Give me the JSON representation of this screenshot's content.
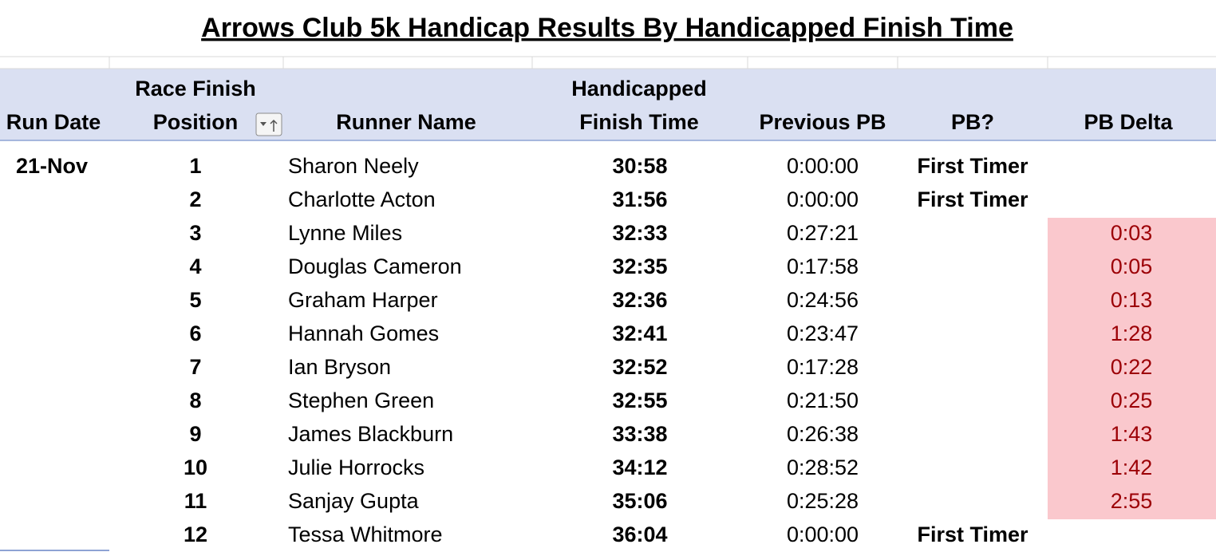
{
  "header": {
    "title": "Arrows Club 5k Handicap Results By Handicapped Finish Time"
  },
  "table": {
    "columns": [
      [
        "Run Date"
      ],
      [
        "Race Finish",
        "Position"
      ],
      [
        "Runner Name"
      ],
      [
        "Handicapped",
        "Finish Time"
      ],
      [
        "Previous PB"
      ],
      [
        "PB?"
      ],
      [
        "PB Delta"
      ]
    ],
    "rows": [
      [
        "21-Nov",
        1,
        "Sharon Neely",
        "30:58",
        "0:00:00",
        "First Timer",
        null
      ],
      [
        null,
        2,
        "Charlotte Acton",
        "31:56",
        "0:00:00",
        "First Timer",
        null
      ],
      [
        null,
        3,
        "Lynne Miles",
        "32:33",
        "0:27:21",
        null,
        "0:03"
      ],
      [
        null,
        4,
        "Douglas Cameron",
        "32:35",
        "0:17:58",
        null,
        "0:05"
      ],
      [
        null,
        5,
        "Graham Harper",
        "32:36",
        "0:24:56",
        null,
        "0:13"
      ],
      [
        null,
        6,
        "Hannah Gomes",
        "32:41",
        "0:23:47",
        null,
        "1:28"
      ],
      [
        null,
        7,
        "Ian Bryson",
        "32:52",
        "0:17:28",
        null,
        "0:22"
      ],
      [
        null,
        8,
        "Stephen Green",
        "32:55",
        "0:21:50",
        null,
        "0:25"
      ],
      [
        null,
        9,
        "James Blackburn",
        "33:38",
        "0:26:38",
        null,
        "1:43"
      ],
      [
        null,
        10,
        "Julie Horrocks",
        "34:12",
        "0:28:52",
        null,
        "1:42"
      ],
      [
        null,
        11,
        "Sanjay Gupta",
        "35:06",
        "0:25:28",
        null,
        "2:55"
      ],
      [
        null,
        12,
        "Tessa Whitmore",
        "36:04",
        "0:00:00",
        "First Timer",
        null
      ]
    ]
  }
}
